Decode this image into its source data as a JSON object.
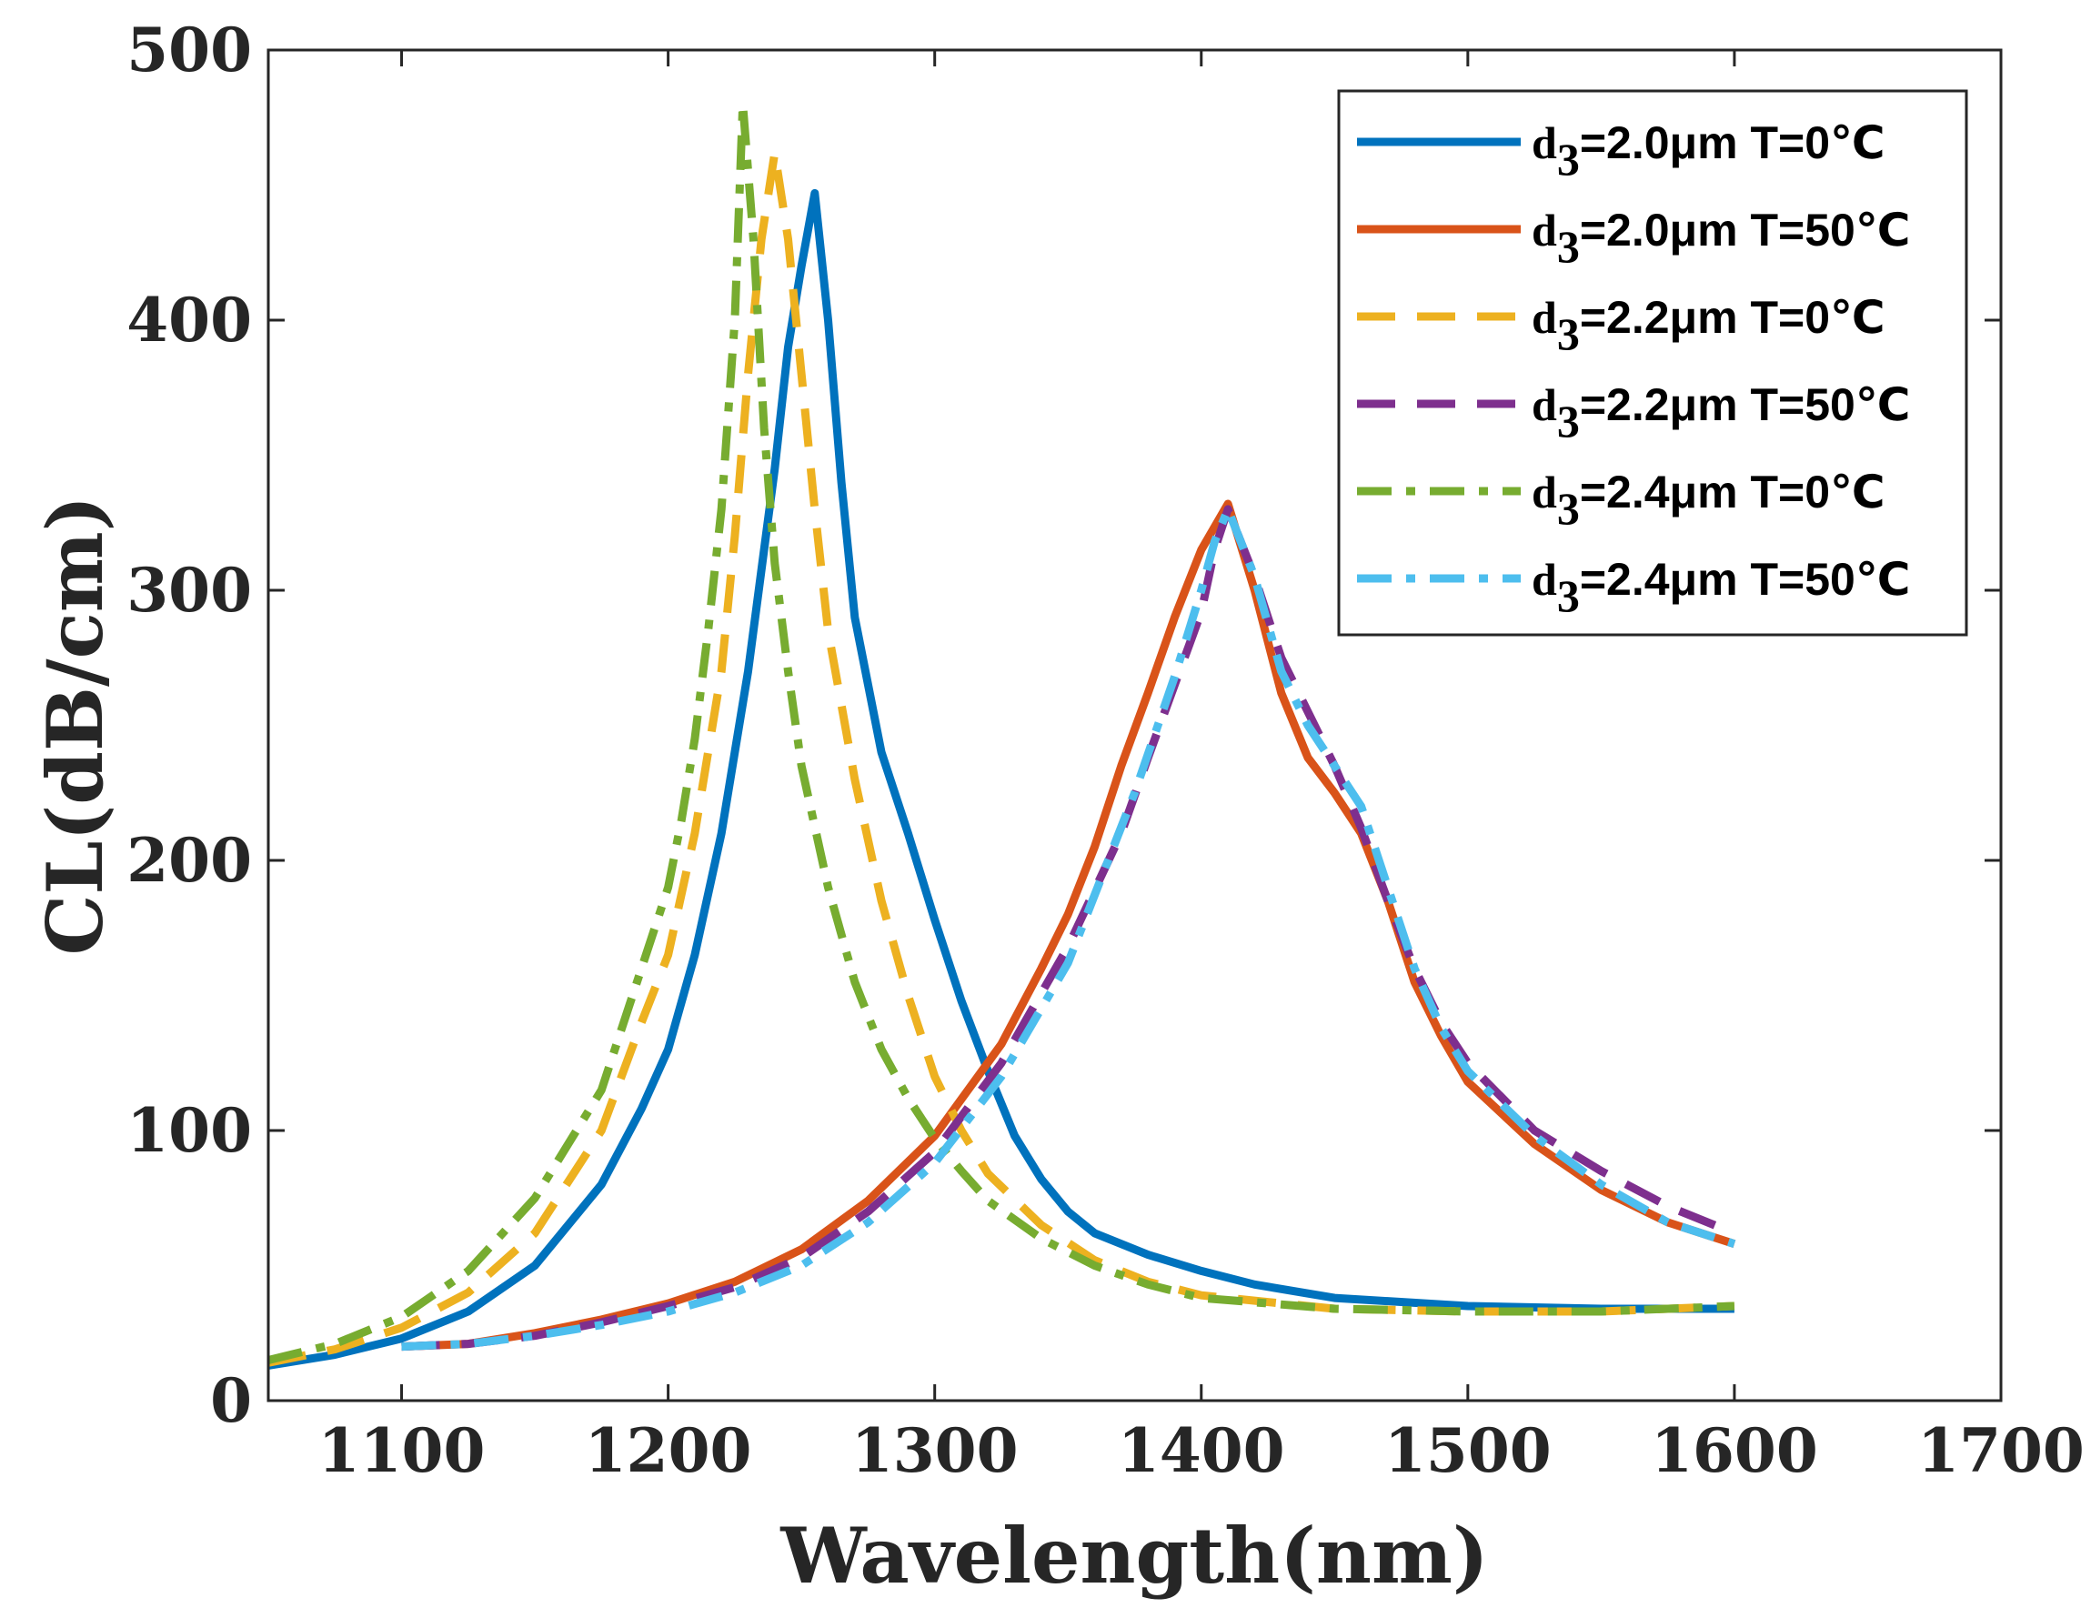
{
  "chart_data": {
    "type": "line",
    "title": "",
    "xlabel": "Wavelength(nm)",
    "ylabel": "CL(dB/cm)",
    "xlim": [
      1050,
      1700
    ],
    "ylim": [
      0,
      500
    ],
    "xticks": [
      1100,
      1200,
      1300,
      1400,
      1500,
      1600,
      1700
    ],
    "yticks": [
      0,
      100,
      200,
      300,
      400,
      500
    ],
    "grid": false,
    "legend_position": "top-right",
    "series": [
      {
        "name": "d3=2.0μm T=0℃",
        "legend_main": "d",
        "legend_sub": "3",
        "legend_rest": "=2.0μm T=0℃",
        "color": "#0072BD",
        "style": "solid",
        "x": [
          1050,
          1075,
          1100,
          1125,
          1150,
          1175,
          1190,
          1200,
          1210,
          1220,
          1230,
          1240,
          1245,
          1250,
          1255,
          1260,
          1265,
          1270,
          1280,
          1290,
          1300,
          1310,
          1320,
          1330,
          1340,
          1350,
          1360,
          1380,
          1400,
          1420,
          1450,
          1500,
          1550,
          1600
        ],
        "y": [
          13,
          17,
          23,
          33,
          50,
          80,
          108,
          130,
          165,
          210,
          270,
          345,
          390,
          420,
          447,
          400,
          340,
          290,
          240,
          210,
          178,
          148,
          122,
          98,
          82,
          70,
          62,
          54,
          48,
          43,
          38,
          35,
          34,
          34
        ]
      },
      {
        "name": "d3=2.0μm T=50℃",
        "legend_main": "d",
        "legend_sub": "3",
        "legend_rest": "=2.0μm T=50℃",
        "color": "#D95319",
        "style": "solid",
        "x": [
          1100,
          1125,
          1150,
          1175,
          1200,
          1225,
          1250,
          1275,
          1300,
          1325,
          1340,
          1350,
          1360,
          1370,
          1380,
          1390,
          1400,
          1410,
          1420,
          1430,
          1440,
          1450,
          1460,
          1470,
          1480,
          1490,
          1500,
          1525,
          1550,
          1575,
          1600
        ],
        "y": [
          20,
          21,
          25,
          30,
          36,
          44,
          56,
          74,
          98,
          132,
          160,
          180,
          205,
          235,
          262,
          290,
          315,
          332,
          300,
          262,
          238,
          225,
          210,
          185,
          155,
          135,
          118,
          95,
          78,
          66,
          58
        ]
      },
      {
        "name": "d3=2.2μm T=0℃",
        "legend_main": "d",
        "legend_sub": "3",
        "legend_rest": "=2.2μm T=0℃",
        "color": "#EDB120",
        "style": "dashed",
        "x": [
          1050,
          1075,
          1100,
          1125,
          1150,
          1175,
          1190,
          1200,
          1210,
          1220,
          1225,
          1230,
          1235,
          1240,
          1245,
          1250,
          1255,
          1260,
          1270,
          1280,
          1290,
          1300,
          1310,
          1320,
          1340,
          1360,
          1380,
          1400,
          1450,
          1500,
          1550,
          1600
        ],
        "y": [
          14,
          19,
          27,
          40,
          62,
          100,
          140,
          165,
          210,
          270,
          320,
          380,
          430,
          462,
          430,
          380,
          330,
          285,
          230,
          185,
          150,
          120,
          100,
          84,
          65,
          52,
          44,
          39,
          34,
          33,
          33,
          35
        ]
      },
      {
        "name": "d3=2.2μm T=50℃",
        "legend_main": "d",
        "legend_sub": "3",
        "legend_rest": "=2.2μm T=50℃",
        "color": "#7E2F8E",
        "style": "dashed",
        "x": [
          1100,
          1125,
          1150,
          1175,
          1200,
          1225,
          1250,
          1275,
          1300,
          1325,
          1350,
          1370,
          1380,
          1390,
          1400,
          1405,
          1410,
          1420,
          1430,
          1440,
          1450,
          1460,
          1470,
          1480,
          1490,
          1500,
          1525,
          1550,
          1575,
          1600
        ],
        "y": [
          20,
          21,
          24,
          29,
          35,
          42,
          53,
          70,
          92,
          125,
          168,
          210,
          238,
          265,
          292,
          315,
          330,
          305,
          275,
          255,
          235,
          212,
          185,
          160,
          140,
          125,
          100,
          85,
          72,
          62
        ]
      },
      {
        "name": "d3=2.4μm T=0℃",
        "legend_main": "d",
        "legend_sub": "3",
        "legend_rest": "=2.4μm T=0℃",
        "color": "#77AC30",
        "style": "dashdot",
        "x": [
          1050,
          1075,
          1100,
          1125,
          1150,
          1175,
          1190,
          1200,
          1205,
          1210,
          1215,
          1220,
          1225,
          1228,
          1232,
          1236,
          1240,
          1245,
          1250,
          1260,
          1270,
          1280,
          1290,
          1300,
          1310,
          1320,
          1340,
          1360,
          1380,
          1400,
          1450,
          1500,
          1550,
          1600
        ],
        "y": [
          15,
          21,
          31,
          48,
          75,
          115,
          160,
          190,
          215,
          245,
          285,
          330,
          400,
          480,
          430,
          360,
          310,
          270,
          235,
          190,
          155,
          130,
          112,
          97,
          85,
          74,
          60,
          50,
          43,
          38,
          34,
          33,
          33,
          35
        ]
      },
      {
        "name": "d3=2.4μm T=50℃",
        "legend_main": "d",
        "legend_sub": "3",
        "legend_rest": "=2.4μm T=50℃",
        "color": "#4DBEEE",
        "style": "dashdot",
        "x": [
          1100,
          1125,
          1150,
          1175,
          1200,
          1225,
          1250,
          1275,
          1300,
          1325,
          1350,
          1375,
          1390,
          1400,
          1405,
          1410,
          1420,
          1430,
          1440,
          1450,
          1460,
          1470,
          1480,
          1490,
          1500,
          1525,
          1550,
          1575,
          1600
        ],
        "y": [
          20,
          21,
          24,
          28,
          33,
          40,
          50,
          66,
          88,
          120,
          162,
          225,
          268,
          300,
          318,
          330,
          305,
          270,
          250,
          235,
          220,
          190,
          160,
          138,
          122,
          98,
          80,
          66,
          58
        ]
      }
    ]
  }
}
